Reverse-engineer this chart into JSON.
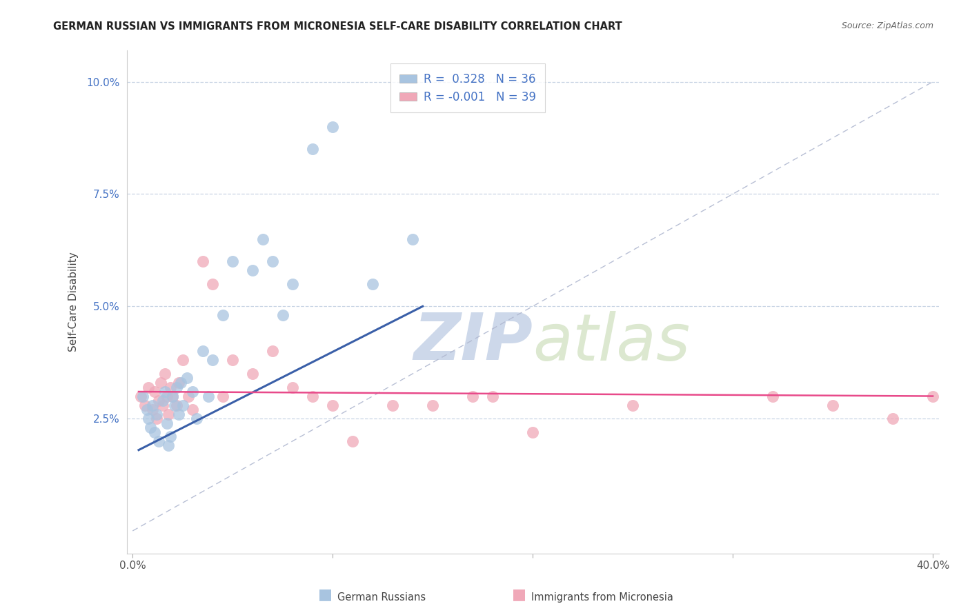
{
  "title": "GERMAN RUSSIAN VS IMMIGRANTS FROM MICRONESIA SELF-CARE DISABILITY CORRELATION CHART",
  "source": "Source: ZipAtlas.com",
  "ylabel": "Self-Care Disability",
  "xlabel": "",
  "xlim": [
    -0.003,
    0.403
  ],
  "ylim": [
    -0.005,
    0.107
  ],
  "xticks": [
    0.0,
    0.1,
    0.2,
    0.3,
    0.4
  ],
  "xticklabels": [
    "0.0%",
    "",
    "",
    "",
    "40.0%"
  ],
  "yticks": [
    0.0,
    0.025,
    0.05,
    0.075,
    0.1
  ],
  "yticklabels": [
    "",
    "2.5%",
    "5.0%",
    "7.5%",
    "10.0%"
  ],
  "blue_R": 0.328,
  "blue_N": 36,
  "pink_R": -0.001,
  "pink_N": 39,
  "blue_color": "#a8c4e0",
  "pink_color": "#f0a8b8",
  "blue_line_color": "#3a5fa8",
  "pink_line_color": "#e84a8a",
  "dashed_line_color": "#b0b8d0",
  "legend_text_color": "#4472c4",
  "watermark_color": "#cdd8ea",
  "grid_color": "#c8d4e4",
  "blue_x": [
    0.005,
    0.007,
    0.008,
    0.009,
    0.01,
    0.011,
    0.012,
    0.013,
    0.015,
    0.016,
    0.017,
    0.018,
    0.019,
    0.02,
    0.021,
    0.022,
    0.023,
    0.024,
    0.025,
    0.027,
    0.03,
    0.032,
    0.035,
    0.038,
    0.04,
    0.045,
    0.05,
    0.06,
    0.065,
    0.07,
    0.075,
    0.08,
    0.09,
    0.1,
    0.12,
    0.14
  ],
  "blue_y": [
    0.03,
    0.027,
    0.025,
    0.023,
    0.028,
    0.022,
    0.026,
    0.02,
    0.029,
    0.031,
    0.024,
    0.019,
    0.021,
    0.03,
    0.028,
    0.032,
    0.026,
    0.033,
    0.028,
    0.034,
    0.031,
    0.025,
    0.04,
    0.03,
    0.038,
    0.048,
    0.06,
    0.058,
    0.065,
    0.06,
    0.048,
    0.055,
    0.085,
    0.09,
    0.055,
    0.065
  ],
  "pink_x": [
    0.004,
    0.006,
    0.008,
    0.01,
    0.011,
    0.012,
    0.013,
    0.014,
    0.015,
    0.016,
    0.017,
    0.018,
    0.019,
    0.02,
    0.022,
    0.023,
    0.025,
    0.028,
    0.03,
    0.035,
    0.04,
    0.045,
    0.05,
    0.06,
    0.07,
    0.08,
    0.09,
    0.1,
    0.11,
    0.13,
    0.15,
    0.17,
    0.18,
    0.2,
    0.25,
    0.32,
    0.35,
    0.38,
    0.4
  ],
  "pink_y": [
    0.03,
    0.028,
    0.032,
    0.027,
    0.031,
    0.025,
    0.029,
    0.033,
    0.028,
    0.035,
    0.03,
    0.026,
    0.032,
    0.03,
    0.028,
    0.033,
    0.038,
    0.03,
    0.027,
    0.06,
    0.055,
    0.03,
    0.038,
    0.035,
    0.04,
    0.032,
    0.03,
    0.028,
    0.02,
    0.028,
    0.028,
    0.03,
    0.03,
    0.022,
    0.028,
    0.03,
    0.028,
    0.025,
    0.03
  ],
  "blue_line_x": [
    0.003,
    0.145
  ],
  "blue_line_y": [
    0.018,
    0.05
  ],
  "pink_line_x": [
    0.003,
    0.4
  ],
  "pink_line_y": [
    0.031,
    0.03
  ]
}
